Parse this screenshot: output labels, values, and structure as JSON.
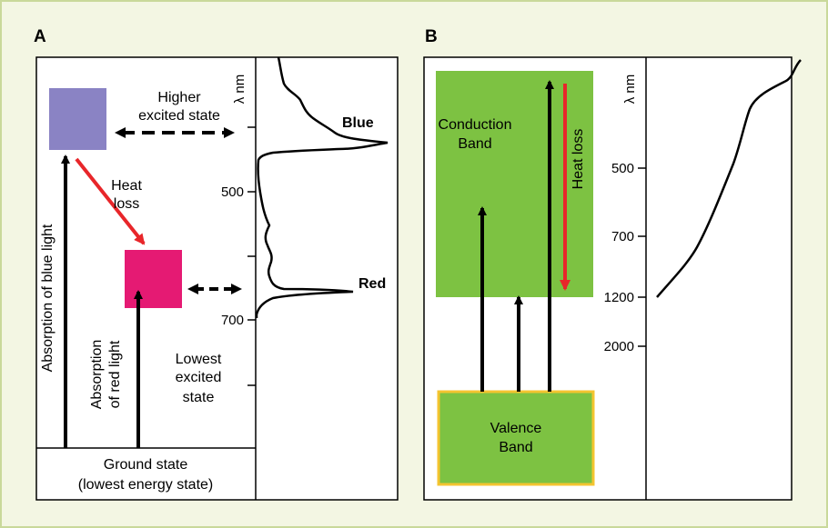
{
  "panel_a": {
    "letter": "A",
    "labels": {
      "higher_excited": [
        "Higher",
        "excited state"
      ],
      "heat_loss": [
        "Heat",
        "loss"
      ],
      "absorption_blue": "Absorption of blue light",
      "absorption_red": [
        "Absorption",
        "of red light"
      ],
      "lowest_excited": [
        "Lowest",
        "excited",
        "state"
      ],
      "ground_state": [
        "Ground state",
        "(lowest energy state)"
      ],
      "axis_unit": "λ nm",
      "ticks": [
        "500",
        "700"
      ],
      "peak_blue": "Blue",
      "peak_red": "Red"
    },
    "colors": {
      "higher_state": "#8a83c4",
      "lowest_state": "#e51a73",
      "heat_arrow": "#e8262a"
    }
  },
  "panel_b": {
    "letter": "B",
    "labels": {
      "conduction": [
        "Conduction",
        "Band"
      ],
      "valence": [
        "Valence",
        "Band"
      ],
      "heat_loss": "Heat loss",
      "axis_unit": "λ nm",
      "ticks": [
        "500",
        "700",
        "1200",
        "2000"
      ]
    },
    "colors": {
      "band_fill": "#7dc242",
      "valence_border": "#f4c430",
      "heat_arrow": "#e8262a"
    }
  }
}
